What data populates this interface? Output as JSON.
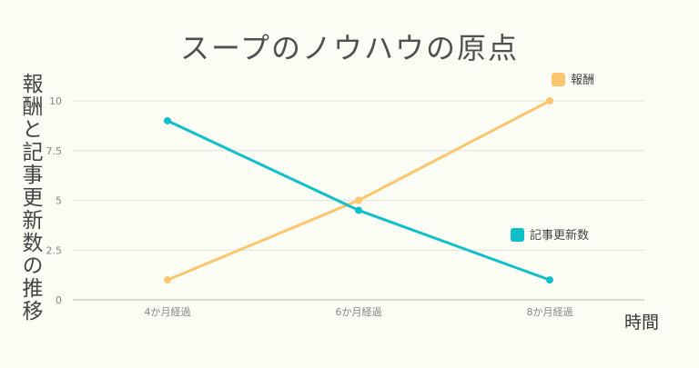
{
  "chart_data": {
    "type": "line",
    "title": "スープのノウハウの原点",
    "ylabel": "報酬と記事更新数の推移",
    "xlabel": "時間",
    "categories": [
      "4か月経過",
      "6か月経過",
      "8か月経過"
    ],
    "ylim": [
      0,
      10
    ],
    "yticks": [
      "0",
      "2.5",
      "5",
      "7.5",
      "10"
    ],
    "grid": true,
    "series": [
      {
        "name": "報酬",
        "values": [
          1,
          5,
          10
        ],
        "color": "#fcc66f"
      },
      {
        "name": "記事更新数",
        "values": [
          9,
          4.5,
          1
        ],
        "color": "#0fbfca"
      }
    ]
  }
}
